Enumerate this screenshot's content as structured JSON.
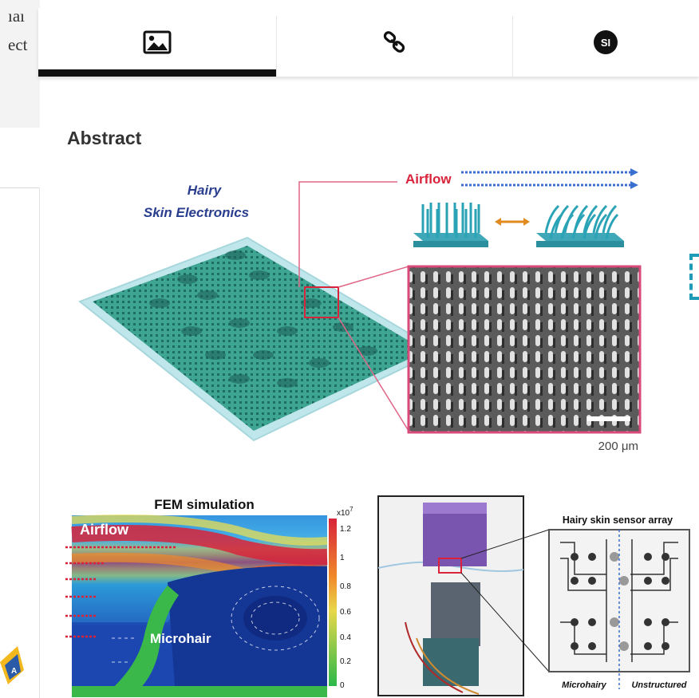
{
  "left_column": {
    "line1": "ıaı",
    "line2": "ect"
  },
  "tabs": {
    "figure_icon": "image-icon",
    "link_icon": "link-icon",
    "si_label": "SI"
  },
  "abstract": {
    "heading": "Abstract"
  },
  "figure": {
    "title_line1": "Hairy",
    "title_line2": "Skin Electronics",
    "airflow_label": "Airflow",
    "scale_label": "200 μm",
    "fem_title": "FEM simulation",
    "fem_airflow": "Airflow",
    "fem_microhair": "Microhair",
    "colorbar_exp": "x10",
    "colorbar_sup": "7",
    "colorbar_ticks": [
      "1.2",
      "1",
      "0.8",
      "0.6",
      "0.4",
      "0.2",
      "0"
    ],
    "array_title": "Hairy skin sensor array",
    "array_left": "Microhairy",
    "array_right": "Unstructured"
  },
  "colors": {
    "accent": "#1f9bb8",
    "tab_active": "#111111",
    "title_blue": "#2a3e8f",
    "airflow_red": "#d8233a"
  }
}
